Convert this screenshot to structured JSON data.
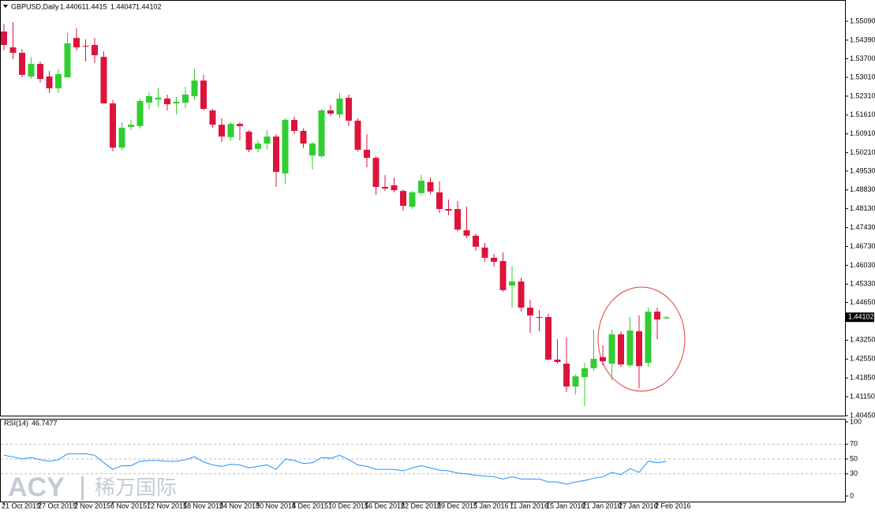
{
  "chart_data": [
    {
      "type": "candlestick",
      "title": "GBPUSD,Daily",
      "categories": [
        "21 Oct 2015",
        null,
        null,
        null,
        "27 Oct 2015",
        null,
        null,
        null,
        "2 Nov 2015",
        null,
        null,
        null,
        "6 Nov 2015",
        null,
        null,
        null,
        "12 Nov 2015",
        null,
        null,
        null,
        "18 Nov 2015",
        null,
        null,
        null,
        "24 Nov 2015",
        null,
        null,
        null,
        "30 Nov 2015",
        null,
        null,
        null,
        "4 Dec 2015",
        null,
        null,
        null,
        "10 Dec 2015",
        null,
        null,
        null,
        "16 Dec 2015",
        null,
        null,
        null,
        "22 Dec 2015",
        null,
        null,
        null,
        "29 Dec 2015",
        null,
        null,
        null,
        "5 Jan 2016",
        null,
        null,
        null,
        "11 Jan 2016",
        null,
        null,
        null,
        "15 Jan 2016",
        null,
        null,
        null,
        "21 Jan 2016",
        null,
        null,
        null,
        "27 Jan 2016",
        null,
        null,
        null,
        "2 Feb 2016",
        null
      ],
      "open": [
        1.5471,
        1.5412,
        1.5392,
        1.5304,
        1.5351,
        1.5304,
        1.526,
        1.5301,
        1.5447,
        1.5418,
        1.5421,
        1.5377,
        1.5204,
        1.504,
        1.5117,
        1.512,
        1.5207,
        1.5219,
        1.5222,
        1.5204,
        1.5207,
        1.5231,
        1.5289,
        1.5178,
        1.5125,
        1.5079,
        1.5128,
        1.5099,
        1.5035,
        1.5055,
        1.5081,
        1.4944,
        1.5143,
        1.5102,
        1.5011,
        1.5008,
        1.5178,
        1.5163,
        1.5225,
        1.514,
        1.5032,
        1.5002,
        1.4894,
        1.49,
        1.4879,
        1.4821,
        1.4871,
        1.4912,
        1.4874,
        1.4812,
        1.4812,
        1.4733,
        1.4713,
        1.4669,
        1.4631,
        1.4619,
        1.4528,
        1.4543,
        1.4446,
        1.4411,
        1.4411,
        1.4253,
        1.4238,
        1.4153,
        1.4188,
        1.4221,
        1.4262,
        1.4238,
        1.4347,
        1.4232,
        1.4358,
        1.4241,
        1.4431,
        1.44061
      ],
      "high": [
        1.55,
        1.5506,
        1.5406,
        1.5377,
        1.536,
        1.5324,
        1.533,
        1.5465,
        1.5483,
        1.5442,
        1.5447,
        1.5398,
        1.5216,
        1.5134,
        1.5143,
        1.5222,
        1.5245,
        1.526,
        1.5237,
        1.5228,
        1.5266,
        1.5333,
        1.531,
        1.5184,
        1.5149,
        1.5134,
        1.5134,
        1.5105,
        1.5067,
        1.5105,
        1.509,
        1.5149,
        1.5155,
        1.5111,
        1.5061,
        1.5184,
        1.5199,
        1.5243,
        1.5237,
        1.5149,
        1.509,
        1.5008,
        1.4938,
        1.4929,
        1.4885,
        1.4879,
        1.4938,
        1.4929,
        1.4915,
        1.4847,
        1.4841,
        1.4821,
        1.4721,
        1.4686,
        1.4645,
        1.4651,
        1.4601,
        1.4557,
        1.4475,
        1.4437,
        1.4423,
        1.4329,
        1.4335,
        1.4197,
        1.4241,
        1.4364,
        1.4306,
        1.4364,
        1.4358,
        1.4411,
        1.4417,
        1.4446,
        1.4446,
        1.4415
      ],
      "low": [
        1.5401,
        1.5368,
        1.5301,
        1.5295,
        1.5281,
        1.5243,
        1.5243,
        1.5301,
        1.5401,
        1.536,
        1.5354,
        1.5204,
        1.5026,
        1.5032,
        1.5105,
        1.5111,
        1.5184,
        1.519,
        1.5178,
        1.5163,
        1.5187,
        1.5216,
        1.5178,
        1.5114,
        1.5061,
        1.5067,
        1.5067,
        1.5023,
        1.5023,
        1.5032,
        1.4894,
        1.4906,
        1.509,
        1.5038,
        1.4958,
        1.5002,
        1.5158,
        1.5149,
        1.512,
        1.5026,
        1.4967,
        1.4865,
        1.4879,
        1.4874,
        1.4806,
        1.4812,
        1.4862,
        1.4868,
        1.4797,
        1.4789,
        1.473,
        1.4704,
        1.4657,
        1.4616,
        1.4598,
        1.4505,
        1.4446,
        1.4431,
        1.4352,
        1.4358,
        1.425,
        1.4238,
        1.4133,
        1.4124,
        1.408,
        1.4212,
        1.4232,
        1.4177,
        1.4226,
        1.4226,
        1.4147,
        1.4226,
        1.4329,
        1.44047
      ],
      "close": [
        1.5421,
        1.5392,
        1.531,
        1.5351,
        1.5295,
        1.526,
        1.5313,
        1.5427,
        1.5412,
        1.5415,
        1.5383,
        1.5204,
        1.504,
        1.5114,
        1.5125,
        1.5213,
        1.5231,
        1.5225,
        1.5201,
        1.521,
        1.5237,
        1.5289,
        1.5184,
        1.5125,
        1.5081,
        1.5128,
        1.512,
        1.5032,
        1.5055,
        1.5081,
        1.495,
        1.5143,
        1.5102,
        1.5055,
        1.5055,
        1.5178,
        1.5166,
        1.5222,
        1.514,
        1.5032,
        1.5002,
        1.4894,
        1.4888,
        1.4882,
        1.4824,
        1.4874,
        1.4917,
        1.4877,
        1.4812,
        1.4806,
        1.4736,
        1.4713,
        1.4672,
        1.4631,
        1.4616,
        1.4511,
        1.4543,
        1.4446,
        1.4417,
        1.4408,
        1.4253,
        1.4244,
        1.4153,
        1.4191,
        1.4221,
        1.4256,
        1.4247,
        1.4347,
        1.4235,
        1.4361,
        1.4229,
        1.4431,
        1.4402,
        1.44102
      ],
      "up_color": "#32cd32",
      "down_color": "#dc143c",
      "ylim": [
        1.4045,
        1.5588
      ],
      "yticks": [
        {
          "value": 1.5509,
          "label": "1.55090"
        },
        {
          "value": 1.5439,
          "label": "1.54390"
        },
        {
          "value": 1.537,
          "label": "1.53700"
        },
        {
          "value": 1.5301,
          "label": "1.53010"
        },
        {
          "value": 1.5231,
          "label": "1.52310"
        },
        {
          "value": 1.5161,
          "label": "1.51610"
        },
        {
          "value": 1.5091,
          "label": "1.50910"
        },
        {
          "value": 1.5021,
          "label": "1.50210"
        },
        {
          "value": 1.4953,
          "label": "1.49530"
        },
        {
          "value": 1.4883,
          "label": "1.48830"
        },
        {
          "value": 1.4813,
          "label": "1.48130"
        },
        {
          "value": 1.4743,
          "label": "1.47430"
        },
        {
          "value": 1.4673,
          "label": "1.46730"
        },
        {
          "value": 1.4603,
          "label": "1.46030"
        },
        {
          "value": 1.4533,
          "label": "1.45330"
        },
        {
          "value": 1.4465,
          "label": "1.44650"
        },
        {
          "value": 1.4325,
          "label": "1.43250"
        },
        {
          "value": 1.4255,
          "label": "1.42550"
        },
        {
          "value": 1.4185,
          "label": "1.41850"
        },
        {
          "value": 1.4115,
          "label": "1.41150"
        },
        {
          "value": 1.4045,
          "label": "1.40450"
        }
      ],
      "watermark": {
        "brand": "ACY",
        "name": "稀万国际"
      }
    },
    {
      "type": "line",
      "title": "RSI(14)",
      "series": [
        {
          "name": "RSI(14)",
          "color": "#1e90ff",
          "values": [
            55,
            53,
            50,
            52,
            49,
            47,
            49,
            57,
            57,
            57,
            55,
            45,
            36,
            41,
            41,
            47,
            48,
            48,
            47,
            47,
            49,
            53,
            46,
            42,
            40,
            43,
            42,
            38,
            40,
            42,
            36,
            50,
            48,
            44,
            45,
            52,
            51,
            55,
            49,
            42,
            40,
            36,
            36,
            36,
            34,
            38,
            41,
            38,
            35,
            34,
            31,
            30,
            28,
            27,
            26,
            23,
            26,
            23,
            23,
            23,
            19,
            19,
            16,
            19,
            21,
            24,
            26,
            32,
            29,
            37,
            32,
            47,
            45,
            46.7477
          ]
        }
      ],
      "ylim": [
        0,
        100
      ],
      "yticks": [
        0,
        30,
        50,
        70,
        100
      ]
    }
  ]
}
